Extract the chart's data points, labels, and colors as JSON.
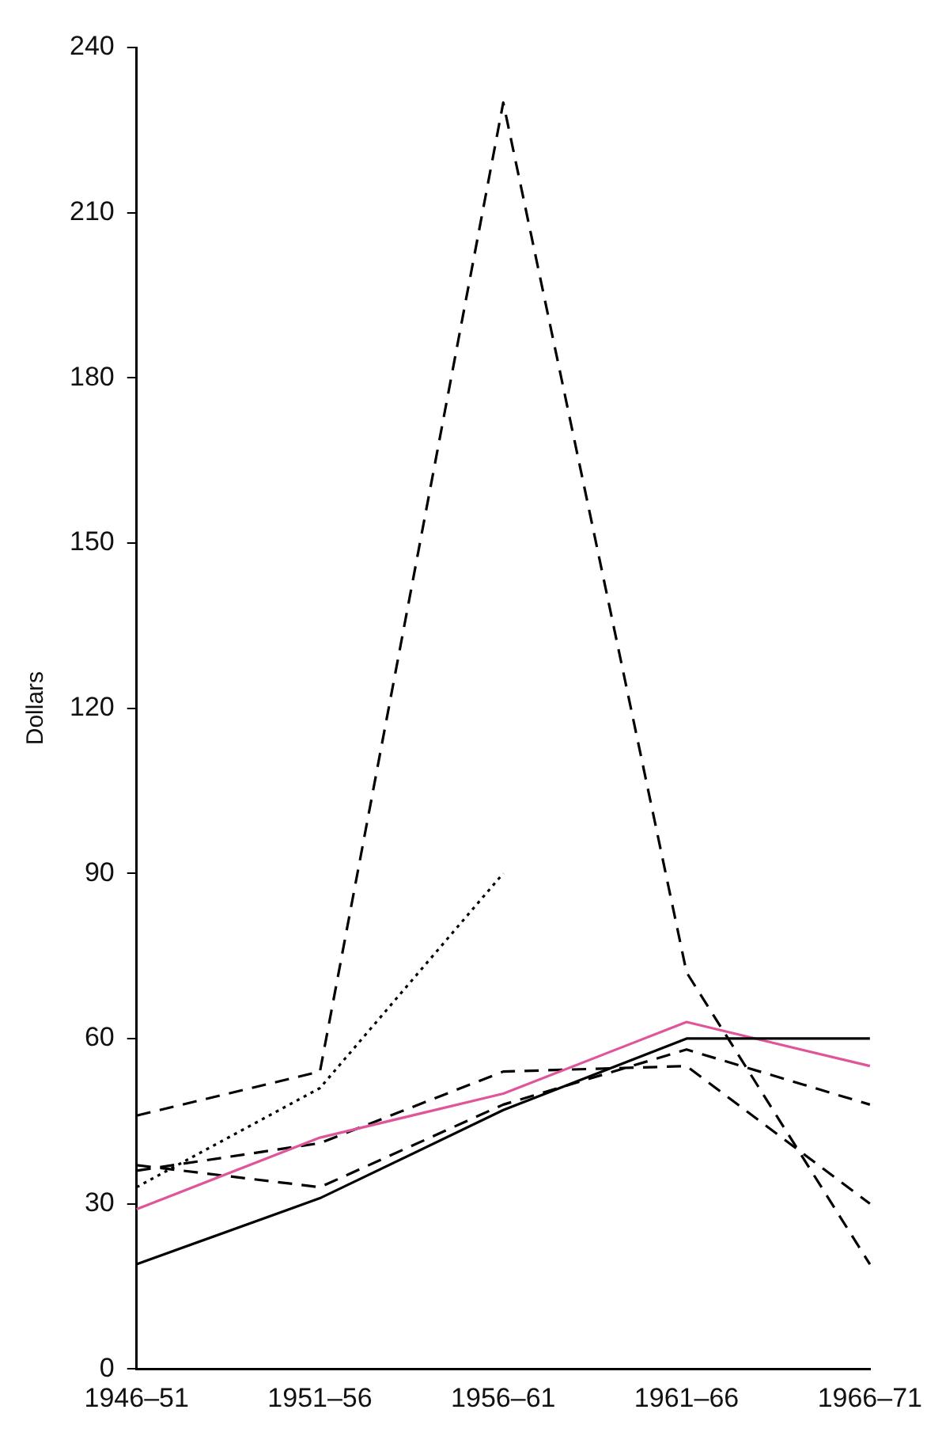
{
  "chart_data": {
    "type": "line",
    "ylabel": "Dollars",
    "categories": [
      "1946–51",
      "1951–56",
      "1956–61",
      "1961–66",
      "1966–71"
    ],
    "ylim": [
      0,
      240
    ],
    "yticks": [
      0,
      30,
      60,
      90,
      120,
      150,
      180,
      210,
      240
    ],
    "grid": false,
    "legend": false,
    "marker": "none",
    "series": [
      {
        "color": "#000000",
        "line_style": "solid",
        "values": [
          19,
          31,
          47,
          60,
          60
        ]
      },
      {
        "color": "#e0559a",
        "line_style": "solid",
        "values": [
          29,
          42,
          50,
          63,
          55
        ]
      },
      {
        "color": "#000000",
        "line_style": "dashed",
        "values": [
          46,
          54,
          230,
          72,
          19
        ]
      },
      {
        "color": "#000000",
        "line_style": "dotted",
        "values": [
          33,
          51,
          90,
          null,
          null
        ]
      },
      {
        "color": "#000000",
        "line_style": "dashed",
        "values": [
          37,
          33,
          48,
          58,
          48
        ]
      },
      {
        "color": "#000000",
        "line_style": "dashed",
        "values": [
          36,
          41,
          54,
          55,
          30
        ]
      }
    ]
  }
}
